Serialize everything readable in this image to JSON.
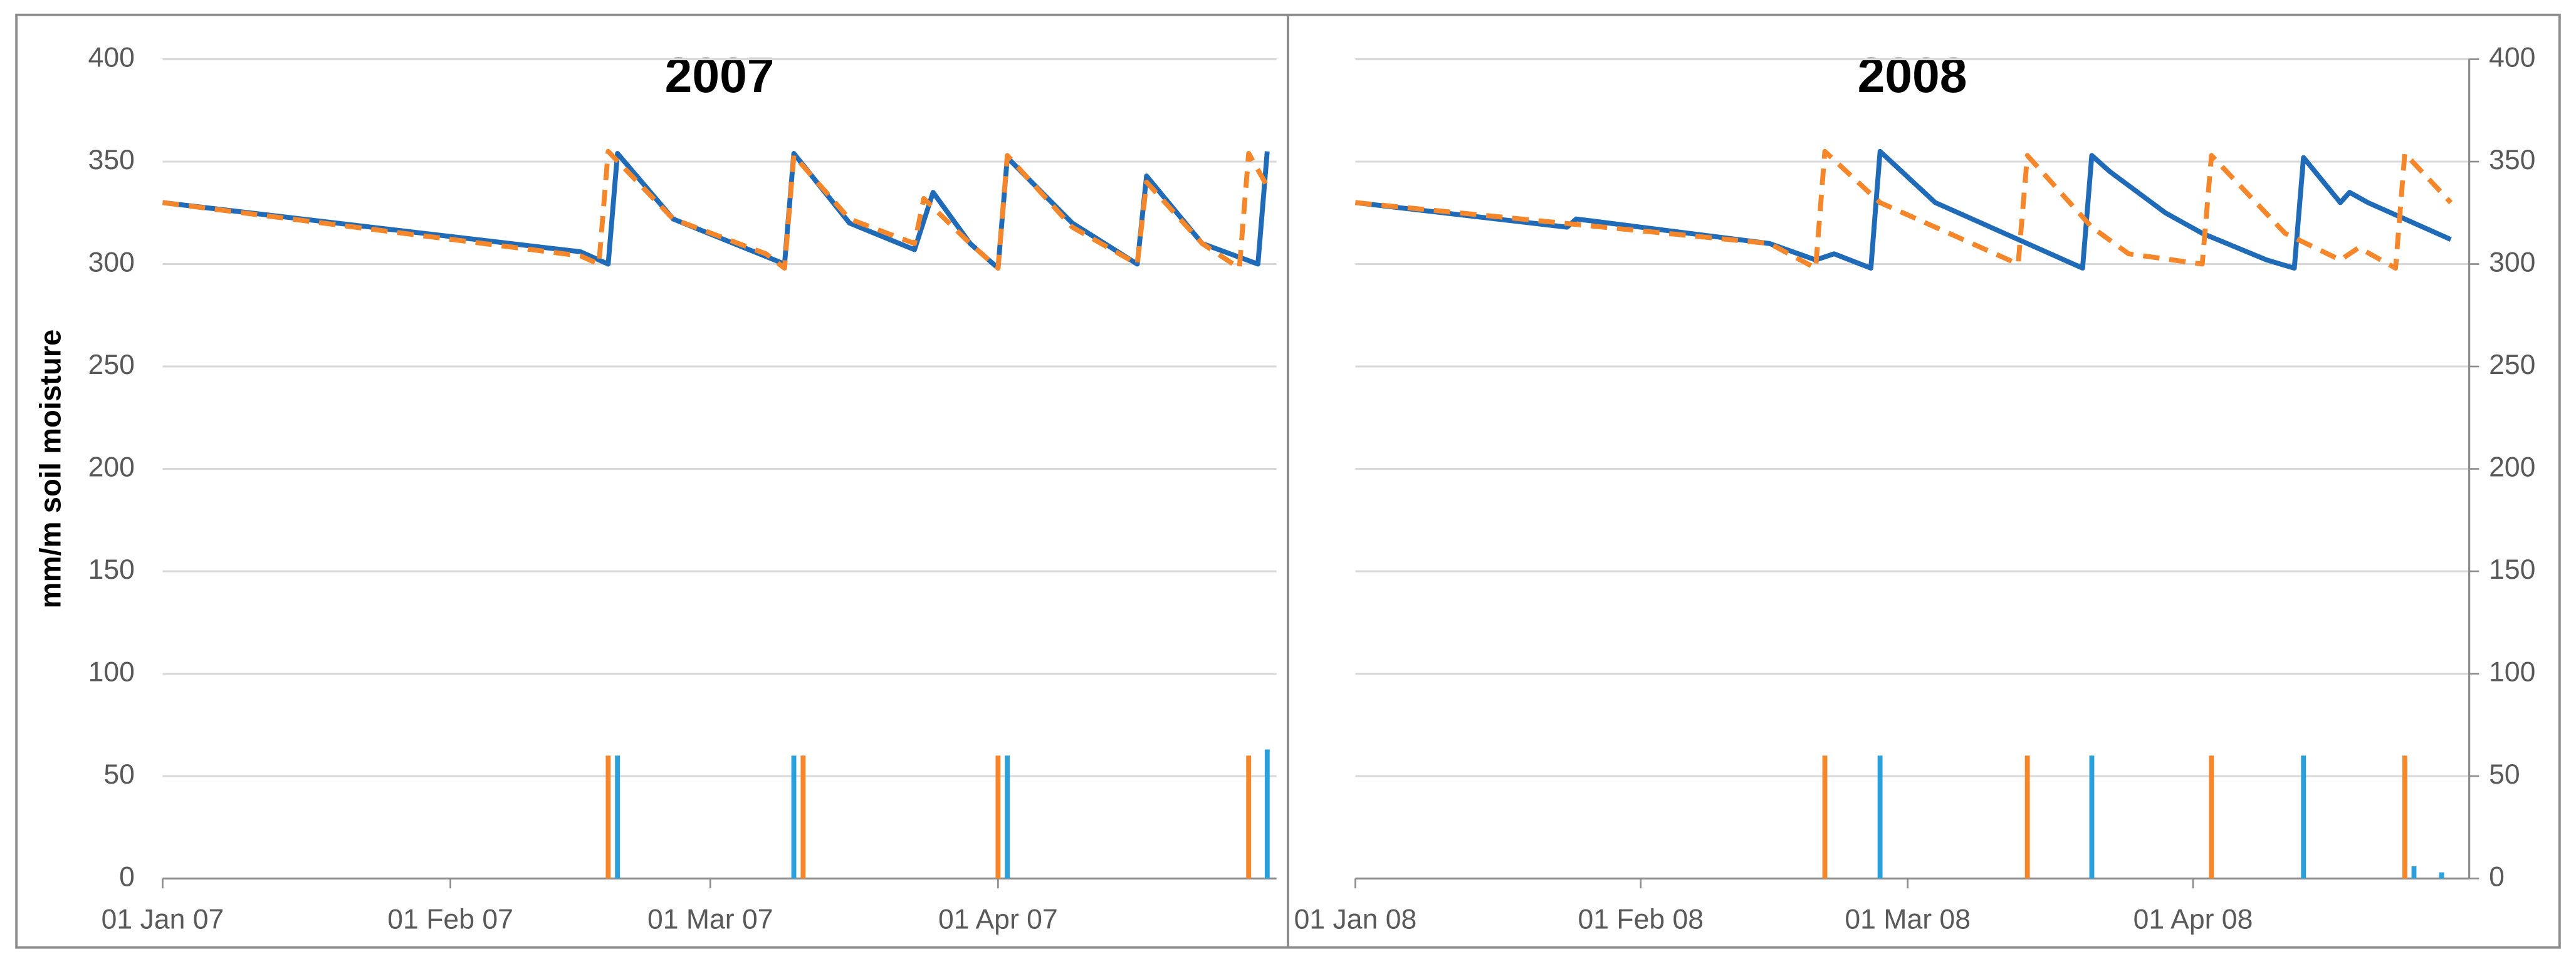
{
  "chart_data": [
    {
      "type": "line",
      "title": "2007",
      "y_label": "mm/m soil moisture",
      "axis_side": "left",
      "xlim": [
        "2007-01-01",
        "2007-05-01"
      ],
      "xticks": [
        {
          "value": "2007-01-01",
          "label": "01 Jan 07"
        },
        {
          "value": "2007-02-01",
          "label": "01 Feb 07"
        },
        {
          "value": "2007-03-01",
          "label": "01 Mar 07"
        },
        {
          "value": "2007-04-01",
          "label": "01 Apr 07"
        }
      ],
      "ylim": [
        0,
        400
      ],
      "yticks": [
        0,
        50,
        100,
        150,
        200,
        250,
        300,
        350,
        400
      ],
      "grid": true,
      "series": [
        {
          "kind": "line",
          "color": "#1f6bb8",
          "dashed": false,
          "x": [
            "2007-01-01",
            "2007-02-15",
            "2007-02-18",
            "2007-02-19",
            "2007-02-25",
            "2007-03-09",
            "2007-03-10",
            "2007-03-16",
            "2007-03-23",
            "2007-03-25",
            "2007-03-29",
            "2007-04-01",
            "2007-04-02",
            "2007-04-09",
            "2007-04-16",
            "2007-04-17",
            "2007-04-23",
            "2007-04-29",
            "2007-04-30"
          ],
          "values": [
            330,
            306,
            300,
            354,
            322,
            300,
            354,
            320,
            307,
            335,
            310,
            298,
            352,
            320,
            300,
            343,
            310,
            300,
            355
          ]
        },
        {
          "kind": "line",
          "color": "#f5862a",
          "dashed": true,
          "x": [
            "2007-01-01",
            "2007-02-15",
            "2007-02-17",
            "2007-02-18",
            "2007-02-25",
            "2007-03-07",
            "2007-03-09",
            "2007-03-10",
            "2007-03-16",
            "2007-03-23",
            "2007-03-24",
            "2007-03-29",
            "2007-04-01",
            "2007-04-02",
            "2007-04-09",
            "2007-04-16",
            "2007-04-17",
            "2007-04-23",
            "2007-04-27",
            "2007-04-28",
            "2007-04-30"
          ],
          "values": [
            330,
            304,
            300,
            355,
            322,
            305,
            298,
            353,
            322,
            310,
            332,
            310,
            298,
            353,
            318,
            300,
            340,
            310,
            298,
            354,
            338
          ]
        },
        {
          "kind": "bar",
          "color": "#f5862a",
          "x": [
            "2007-02-18",
            "2007-03-11",
            "2007-04-01",
            "2007-04-28"
          ],
          "values": [
            60,
            60,
            60,
            60
          ]
        },
        {
          "kind": "bar",
          "color": "#2aa0dc",
          "x": [
            "2007-02-19",
            "2007-03-10",
            "2007-04-02",
            "2007-04-30"
          ],
          "values": [
            60,
            60,
            60,
            63
          ]
        }
      ]
    },
    {
      "type": "line",
      "title": "2008",
      "axis_side": "right",
      "xlim": [
        "2008-01-01",
        "2008-05-01"
      ],
      "xticks": [
        {
          "value": "2008-01-01",
          "label": "01 Jan 08"
        },
        {
          "value": "2008-02-01",
          "label": "01 Feb 08"
        },
        {
          "value": "2008-03-01",
          "label": "01 Mar 08"
        },
        {
          "value": "2008-04-01",
          "label": "01 Apr 08"
        }
      ],
      "ylim": [
        0,
        400
      ],
      "yticks": [
        0,
        50,
        100,
        150,
        200,
        250,
        300,
        350,
        400
      ],
      "grid": true,
      "series": [
        {
          "kind": "line",
          "color": "#1f6bb8",
          "dashed": false,
          "x": [
            "2008-01-01",
            "2008-01-24",
            "2008-01-25",
            "2008-02-15",
            "2008-02-20",
            "2008-02-22",
            "2008-02-26",
            "2008-02-27",
            "2008-03-04",
            "2008-03-14",
            "2008-03-20",
            "2008-03-21",
            "2008-03-23",
            "2008-03-29",
            "2008-04-02",
            "2008-04-09",
            "2008-04-12",
            "2008-04-13",
            "2008-04-17",
            "2008-04-18",
            "2008-04-20",
            "2008-04-29"
          ],
          "values": [
            330,
            318,
            322,
            310,
            302,
            305,
            298,
            355,
            330,
            310,
            298,
            353,
            345,
            325,
            315,
            302,
            298,
            352,
            330,
            335,
            330,
            312
          ]
        },
        {
          "kind": "line",
          "color": "#f5862a",
          "dashed": true,
          "x": [
            "2008-01-01",
            "2008-02-15",
            "2008-02-20",
            "2008-02-21",
            "2008-02-27",
            "2008-03-13",
            "2008-03-14",
            "2008-03-21",
            "2008-03-25",
            "2008-04-02",
            "2008-04-03",
            "2008-04-11",
            "2008-04-17",
            "2008-04-19",
            "2008-04-23",
            "2008-04-24",
            "2008-04-29"
          ],
          "values": [
            330,
            310,
            298,
            355,
            330,
            300,
            353,
            318,
            305,
            300,
            353,
            315,
            302,
            308,
            298,
            354,
            330
          ]
        },
        {
          "kind": "bar",
          "color": "#f5862a",
          "x": [
            "2008-02-21",
            "2008-03-14",
            "2008-04-03",
            "2008-04-24"
          ],
          "values": [
            60,
            60,
            60,
            60
          ]
        },
        {
          "kind": "bar",
          "color": "#2aa0dc",
          "x": [
            "2008-02-27",
            "2008-03-21",
            "2008-04-13",
            "2008-04-25",
            "2008-04-28"
          ],
          "values": [
            60,
            60,
            60,
            6,
            3
          ]
        }
      ]
    }
  ]
}
